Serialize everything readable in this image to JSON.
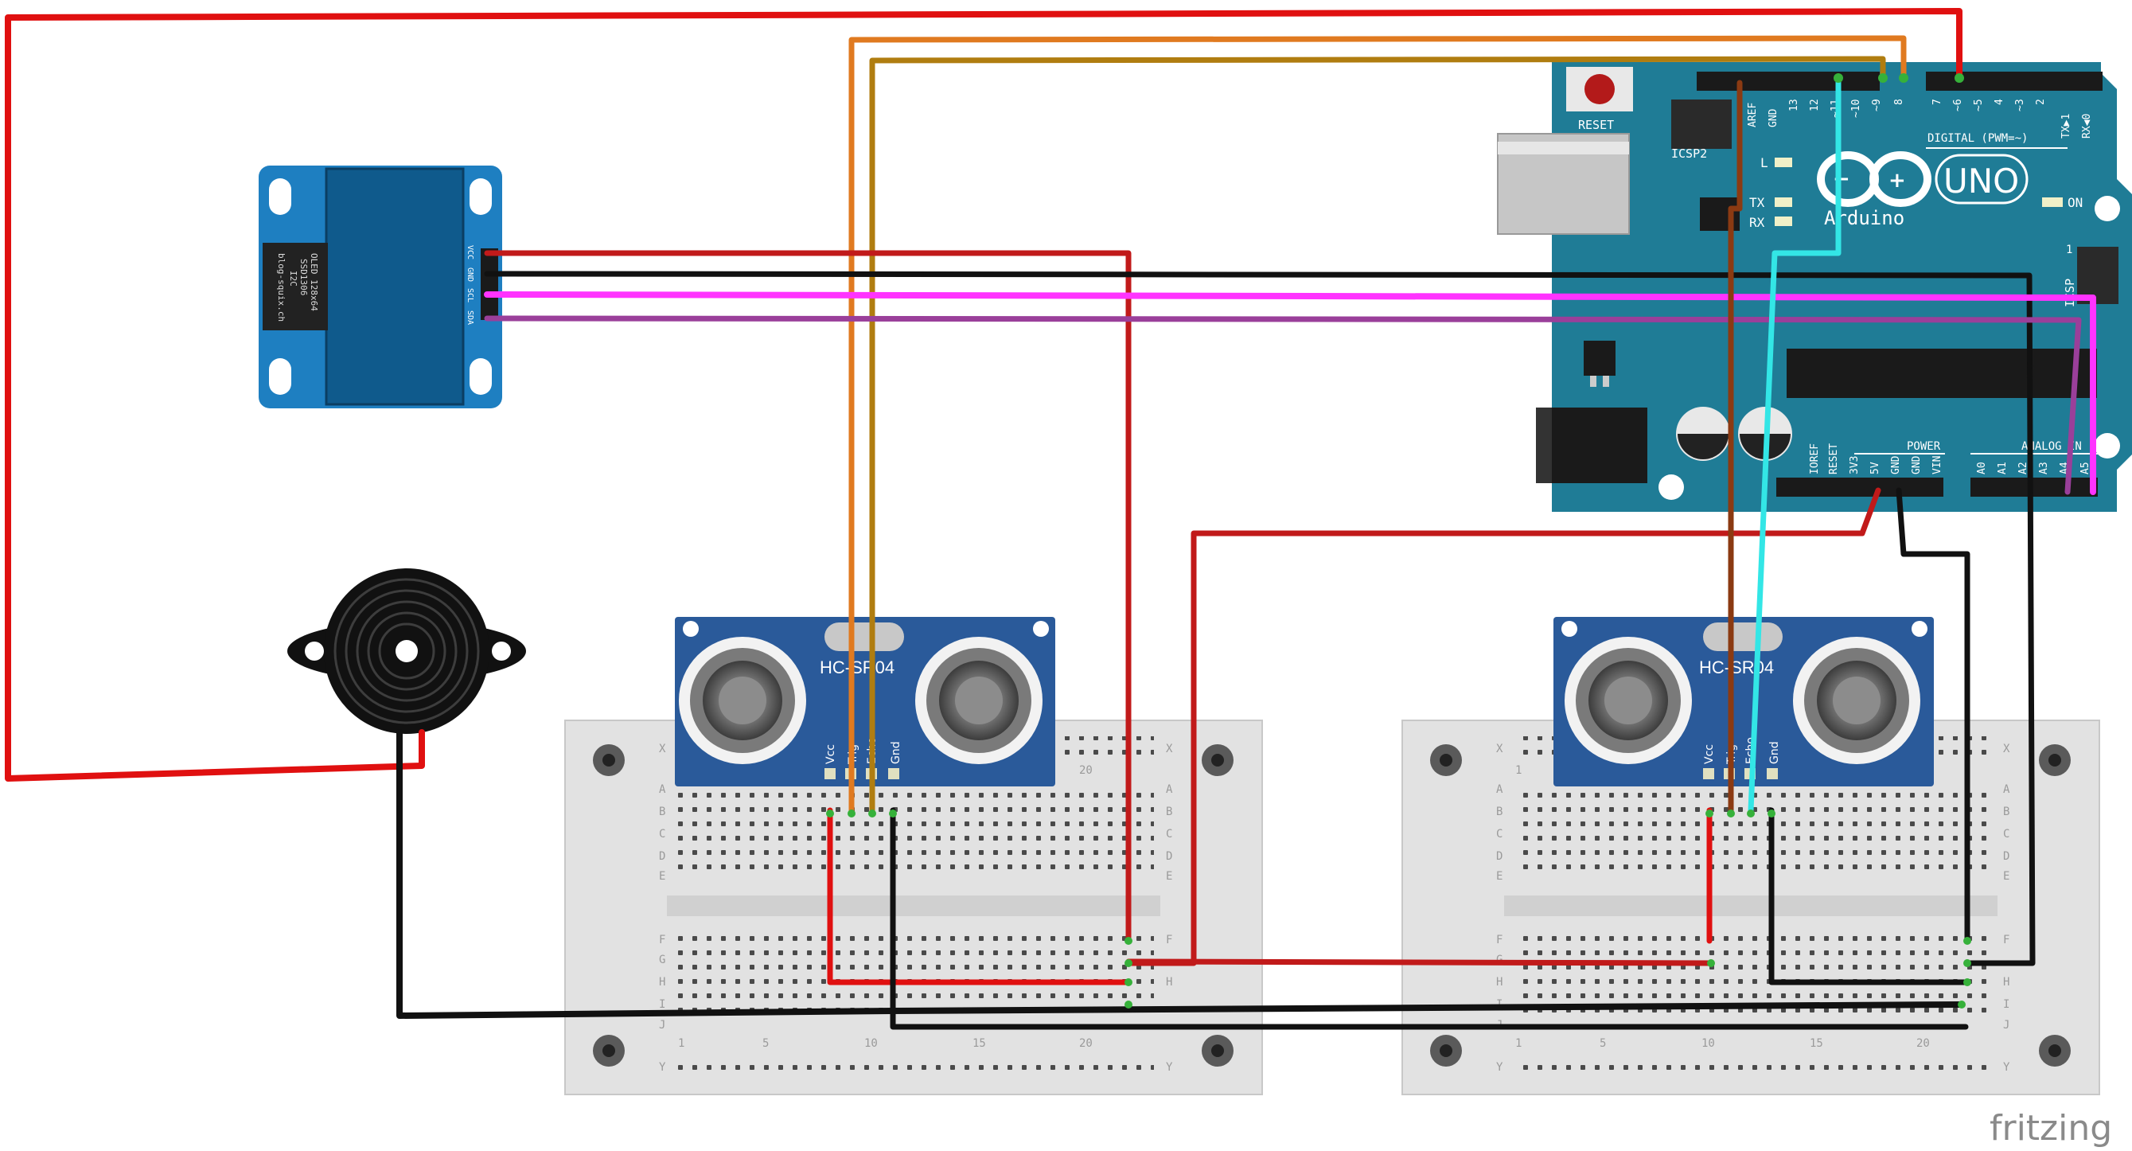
{
  "colors": {
    "background": "#ffffff",
    "arduino_board": "#1f7c96",
    "arduino_dark": "#176479",
    "oled_board": "#1e7fc1",
    "oled_screen": "#0f5a8c",
    "sensor_board": "#2a5a9a",
    "breadboard": "#e4e4e4",
    "wire_red": "#e01010",
    "wire_darkred": "#c11a1a",
    "wire_black": "#111111",
    "wire_orange": "#e07a20",
    "wire_ochre": "#b07d10",
    "wire_magenta": "#ff33ff",
    "wire_purple": "#9a3f9a",
    "wire_cyan": "#33e6e6",
    "wire_brown": "#8b3a12"
  },
  "arduino": {
    "reset_label": "RESET",
    "icsp2_label": "ICSP2",
    "header_labels": [
      "AREF",
      "GND",
      "13",
      "12",
      "~11",
      "~10",
      "~9",
      "8",
      "7",
      "~6",
      "~5",
      "4",
      "~3",
      "2",
      "TX▶1",
      "RX◀0"
    ],
    "digital_label": "DIGITAL (PWM=~)",
    "led_l": "L",
    "led_tx": "TX",
    "led_rx": "RX",
    "uno_label": "UNO",
    "brand_label": "Arduino",
    "on_label": "ON",
    "icsp_label": "ICSP",
    "icsp_pin1": "1",
    "power_labels": [
      "IOREF",
      "RESET",
      "3V3",
      "5V",
      "GND",
      "GND",
      "VIN"
    ],
    "power_label": "POWER",
    "analog_label": "ANALOG IN",
    "analog_pins": [
      "A0",
      "A1",
      "A2",
      "A3",
      "A4",
      "A5"
    ]
  },
  "oled": {
    "pins": [
      "VCC",
      "GND",
      "SCL",
      "SDA"
    ],
    "chip_text": [
      "OLED 128x64",
      "SSD1306",
      "I2C",
      "blog-squix.ch"
    ]
  },
  "sensor_left": {
    "model": "HC-SR04",
    "pins": [
      "Vcc",
      "Trig",
      "Echo",
      "Gnd"
    ]
  },
  "sensor_right": {
    "model": "HC-SR04",
    "pins": [
      "Vcc",
      "Trig",
      "Echo",
      "Gnd"
    ]
  },
  "breadboard": {
    "top_rows": [
      "X",
      "A",
      "B",
      "C",
      "D",
      "E"
    ],
    "bottom_rows": [
      "F",
      "G",
      "H",
      "I",
      "J",
      "Y"
    ],
    "column_marks": [
      "1",
      "5",
      "10",
      "15",
      "20"
    ]
  },
  "fritzing_logo": "fritzing"
}
